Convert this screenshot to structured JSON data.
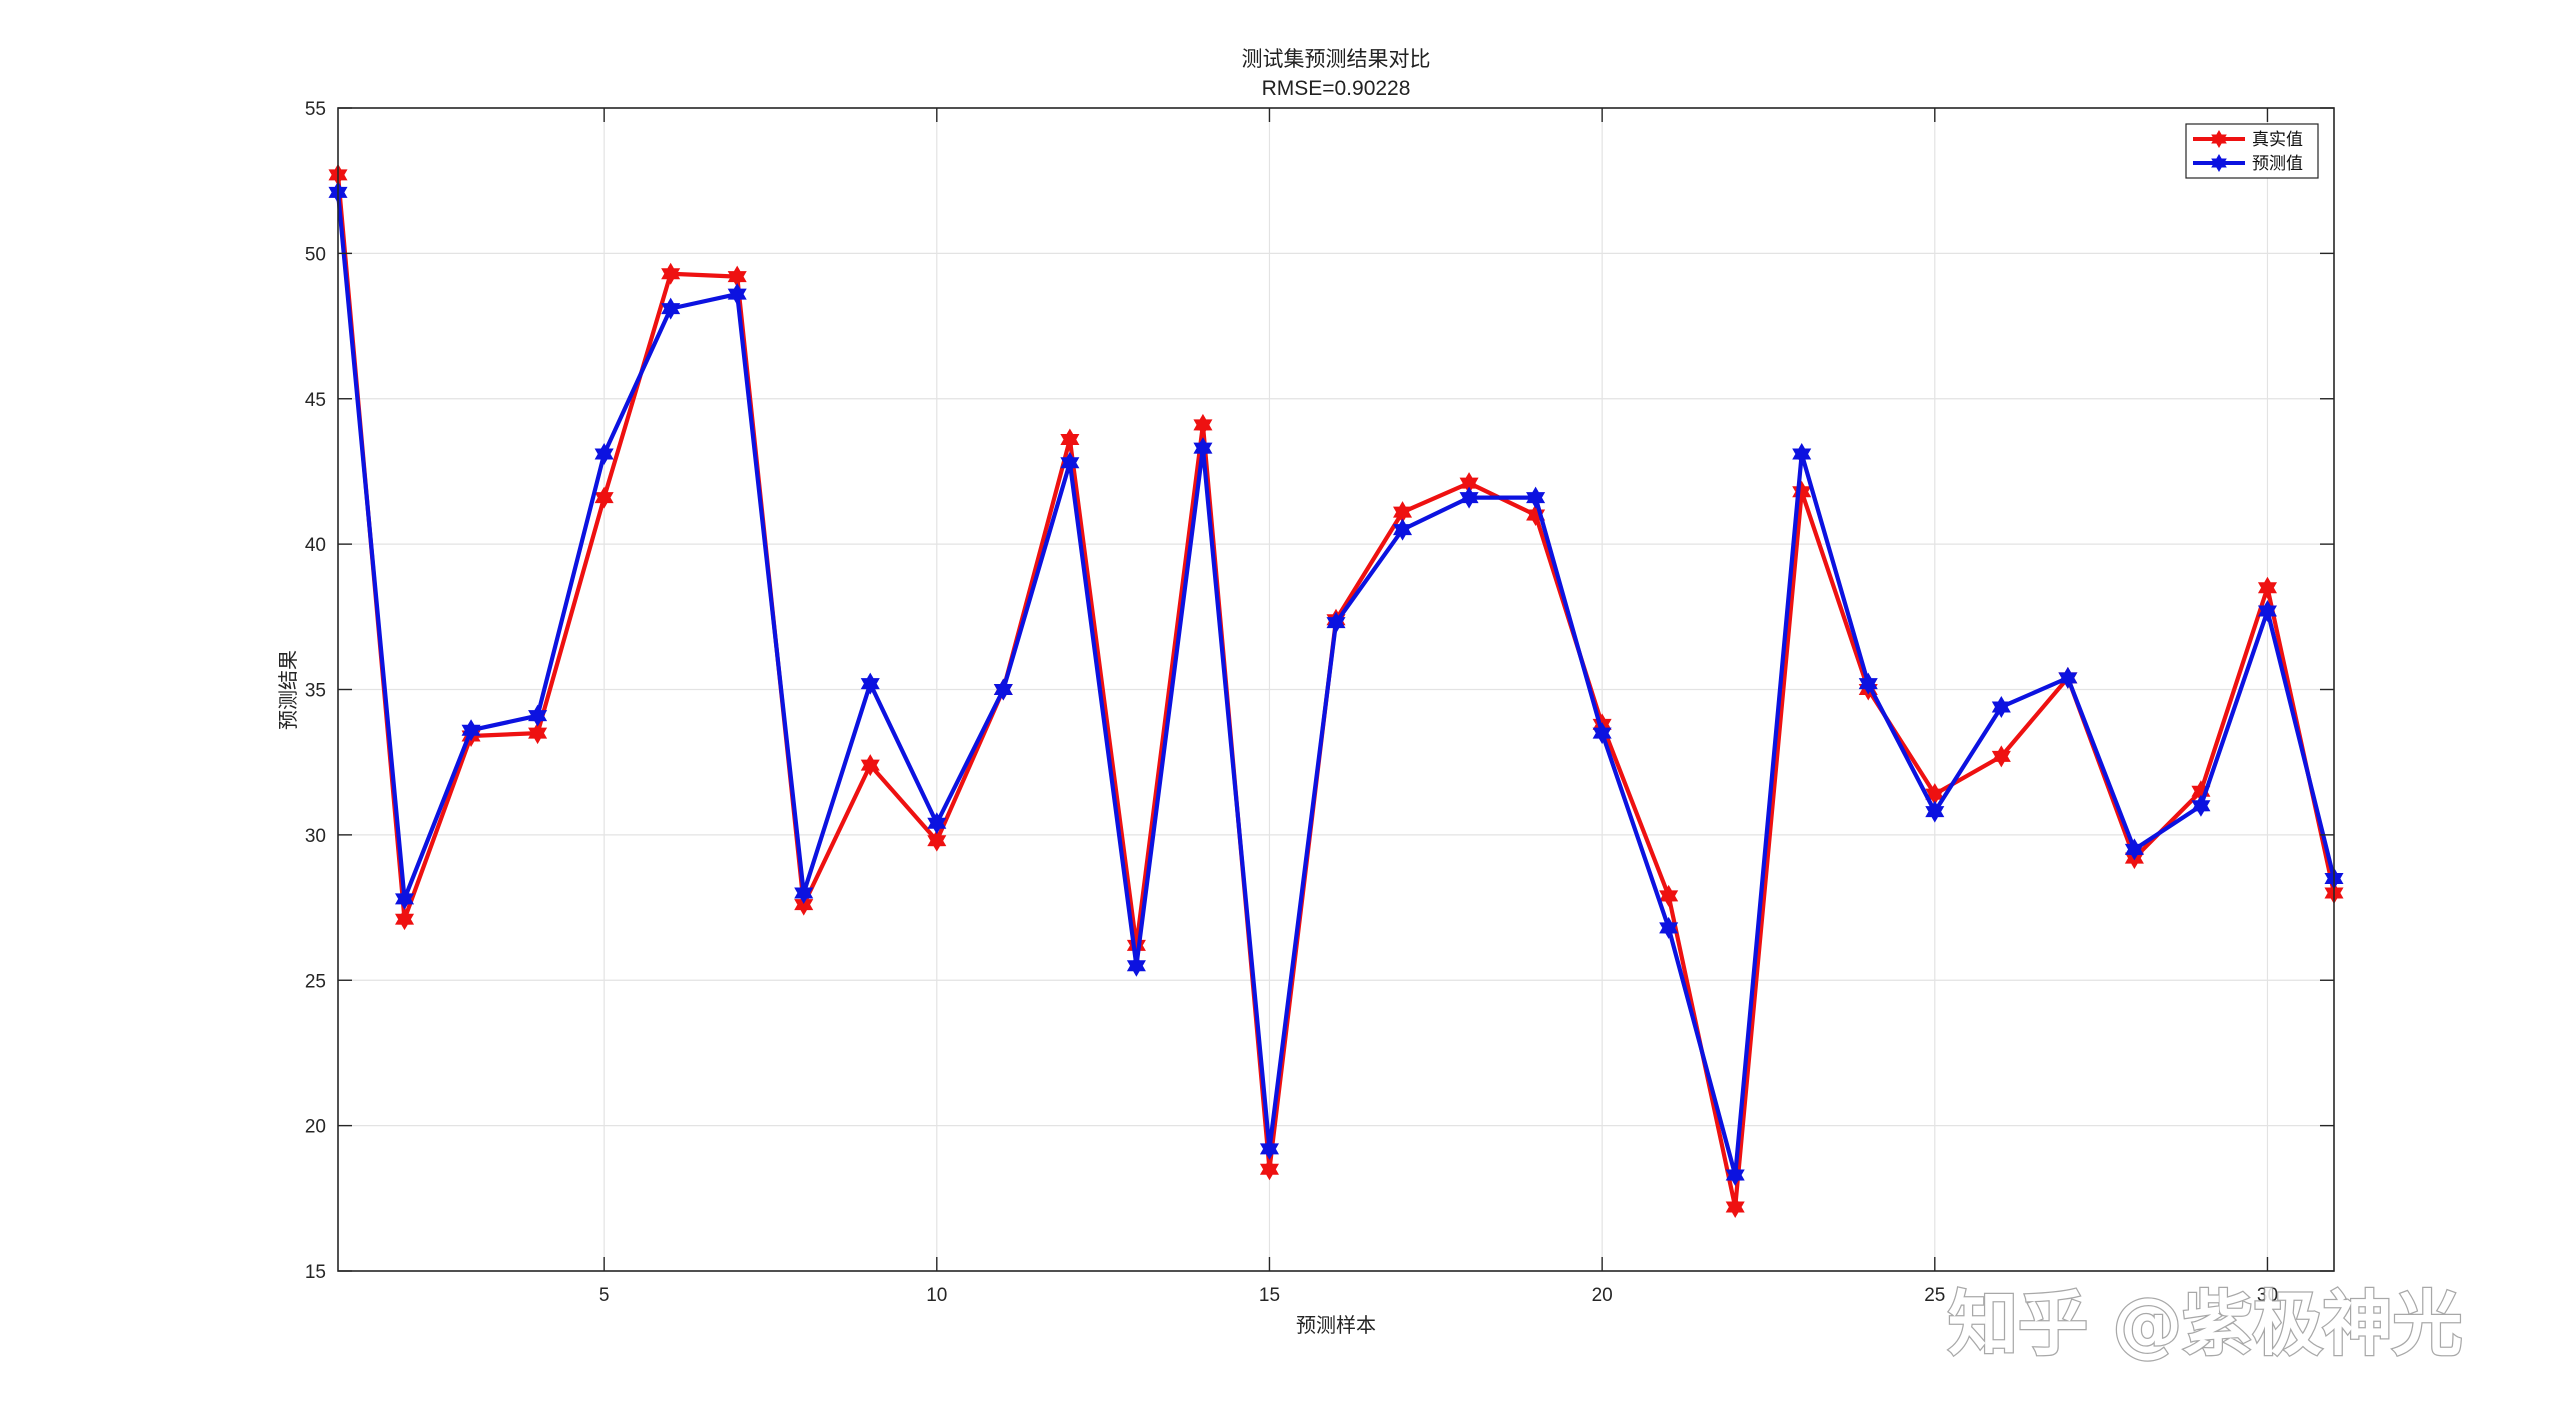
{
  "chart_data": {
    "type": "line",
    "title": "测试集预测结果对比",
    "subtitle": "RMSE=0.90228",
    "xlabel": "预测样本",
    "ylabel": "预测结果",
    "xlim": [
      1,
      31
    ],
    "ylim": [
      15,
      55
    ],
    "xticks": [
      5,
      10,
      15,
      20,
      25,
      30
    ],
    "yticks": [
      15,
      20,
      25,
      30,
      35,
      40,
      45,
      50,
      55
    ],
    "grid": true,
    "legend_position": "top-right",
    "x": [
      1,
      2,
      3,
      4,
      5,
      6,
      7,
      8,
      9,
      10,
      11,
      12,
      13,
      14,
      15,
      16,
      17,
      18,
      19,
      20,
      21,
      22,
      23,
      24,
      25,
      26,
      27,
      28,
      29,
      30,
      31
    ],
    "series": [
      {
        "name": "真实值",
        "color": "#ee1111",
        "marker": "hexagram",
        "values": [
          52.7,
          27.1,
          33.4,
          33.5,
          41.6,
          49.3,
          49.2,
          27.6,
          32.4,
          29.8,
          35.0,
          43.6,
          26.2,
          44.1,
          18.5,
          37.4,
          41.1,
          42.1,
          41.0,
          33.8,
          27.9,
          17.2,
          41.8,
          35.0,
          31.4,
          32.7,
          35.4,
          29.2,
          31.5,
          38.5,
          28.0
        ]
      },
      {
        "name": "预测值",
        "color": "#0c12e0",
        "marker": "hexagram",
        "values": [
          52.1,
          27.8,
          33.6,
          34.1,
          43.1,
          48.1,
          48.6,
          28.0,
          35.2,
          30.4,
          35.0,
          42.8,
          25.5,
          43.3,
          19.2,
          37.3,
          40.5,
          41.6,
          41.6,
          33.5,
          26.8,
          18.3,
          43.1,
          35.2,
          30.8,
          34.4,
          35.4,
          29.5,
          31.0,
          37.7,
          28.5
        ]
      }
    ]
  },
  "watermark": {
    "text": "知乎 @紫极神光"
  }
}
